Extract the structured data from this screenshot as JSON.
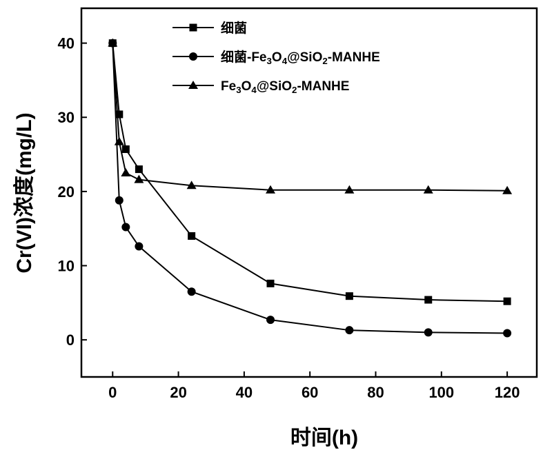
{
  "chart_data": {
    "type": "line",
    "x_label": "时间(h)",
    "y_label": "Cr(VI)浓度(mg/L)",
    "x": [
      0,
      2,
      4,
      8,
      24,
      48,
      72,
      96,
      120
    ],
    "series": [
      {
        "name": "细菌",
        "color": "#000000",
        "marker": "square",
        "values": [
          40,
          30.4,
          25.7,
          23.0,
          14.0,
          7.6,
          5.9,
          5.4,
          5.2
        ]
      },
      {
        "name": "细菌-Fe3O4@SiO2-MANHE",
        "color": "#000000",
        "marker": "circle",
        "values": [
          40,
          18.8,
          15.2,
          12.6,
          6.5,
          2.7,
          1.3,
          1.0,
          0.9
        ]
      },
      {
        "name": "Fe3O4@SiO2-MANHE",
        "color": "#000000",
        "marker": "triangle",
        "values": [
          40,
          26.7,
          22.5,
          21.6,
          20.8,
          20.2,
          20.2,
          20.2,
          20.1
        ]
      }
    ],
    "xlim": [
      -9.5,
      129
    ],
    "ylim": [
      -5,
      44.7
    ],
    "xticks": [
      0,
      20,
      40,
      60,
      80,
      100,
      120
    ],
    "yticks": [
      0,
      10,
      20,
      30,
      40
    ]
  }
}
